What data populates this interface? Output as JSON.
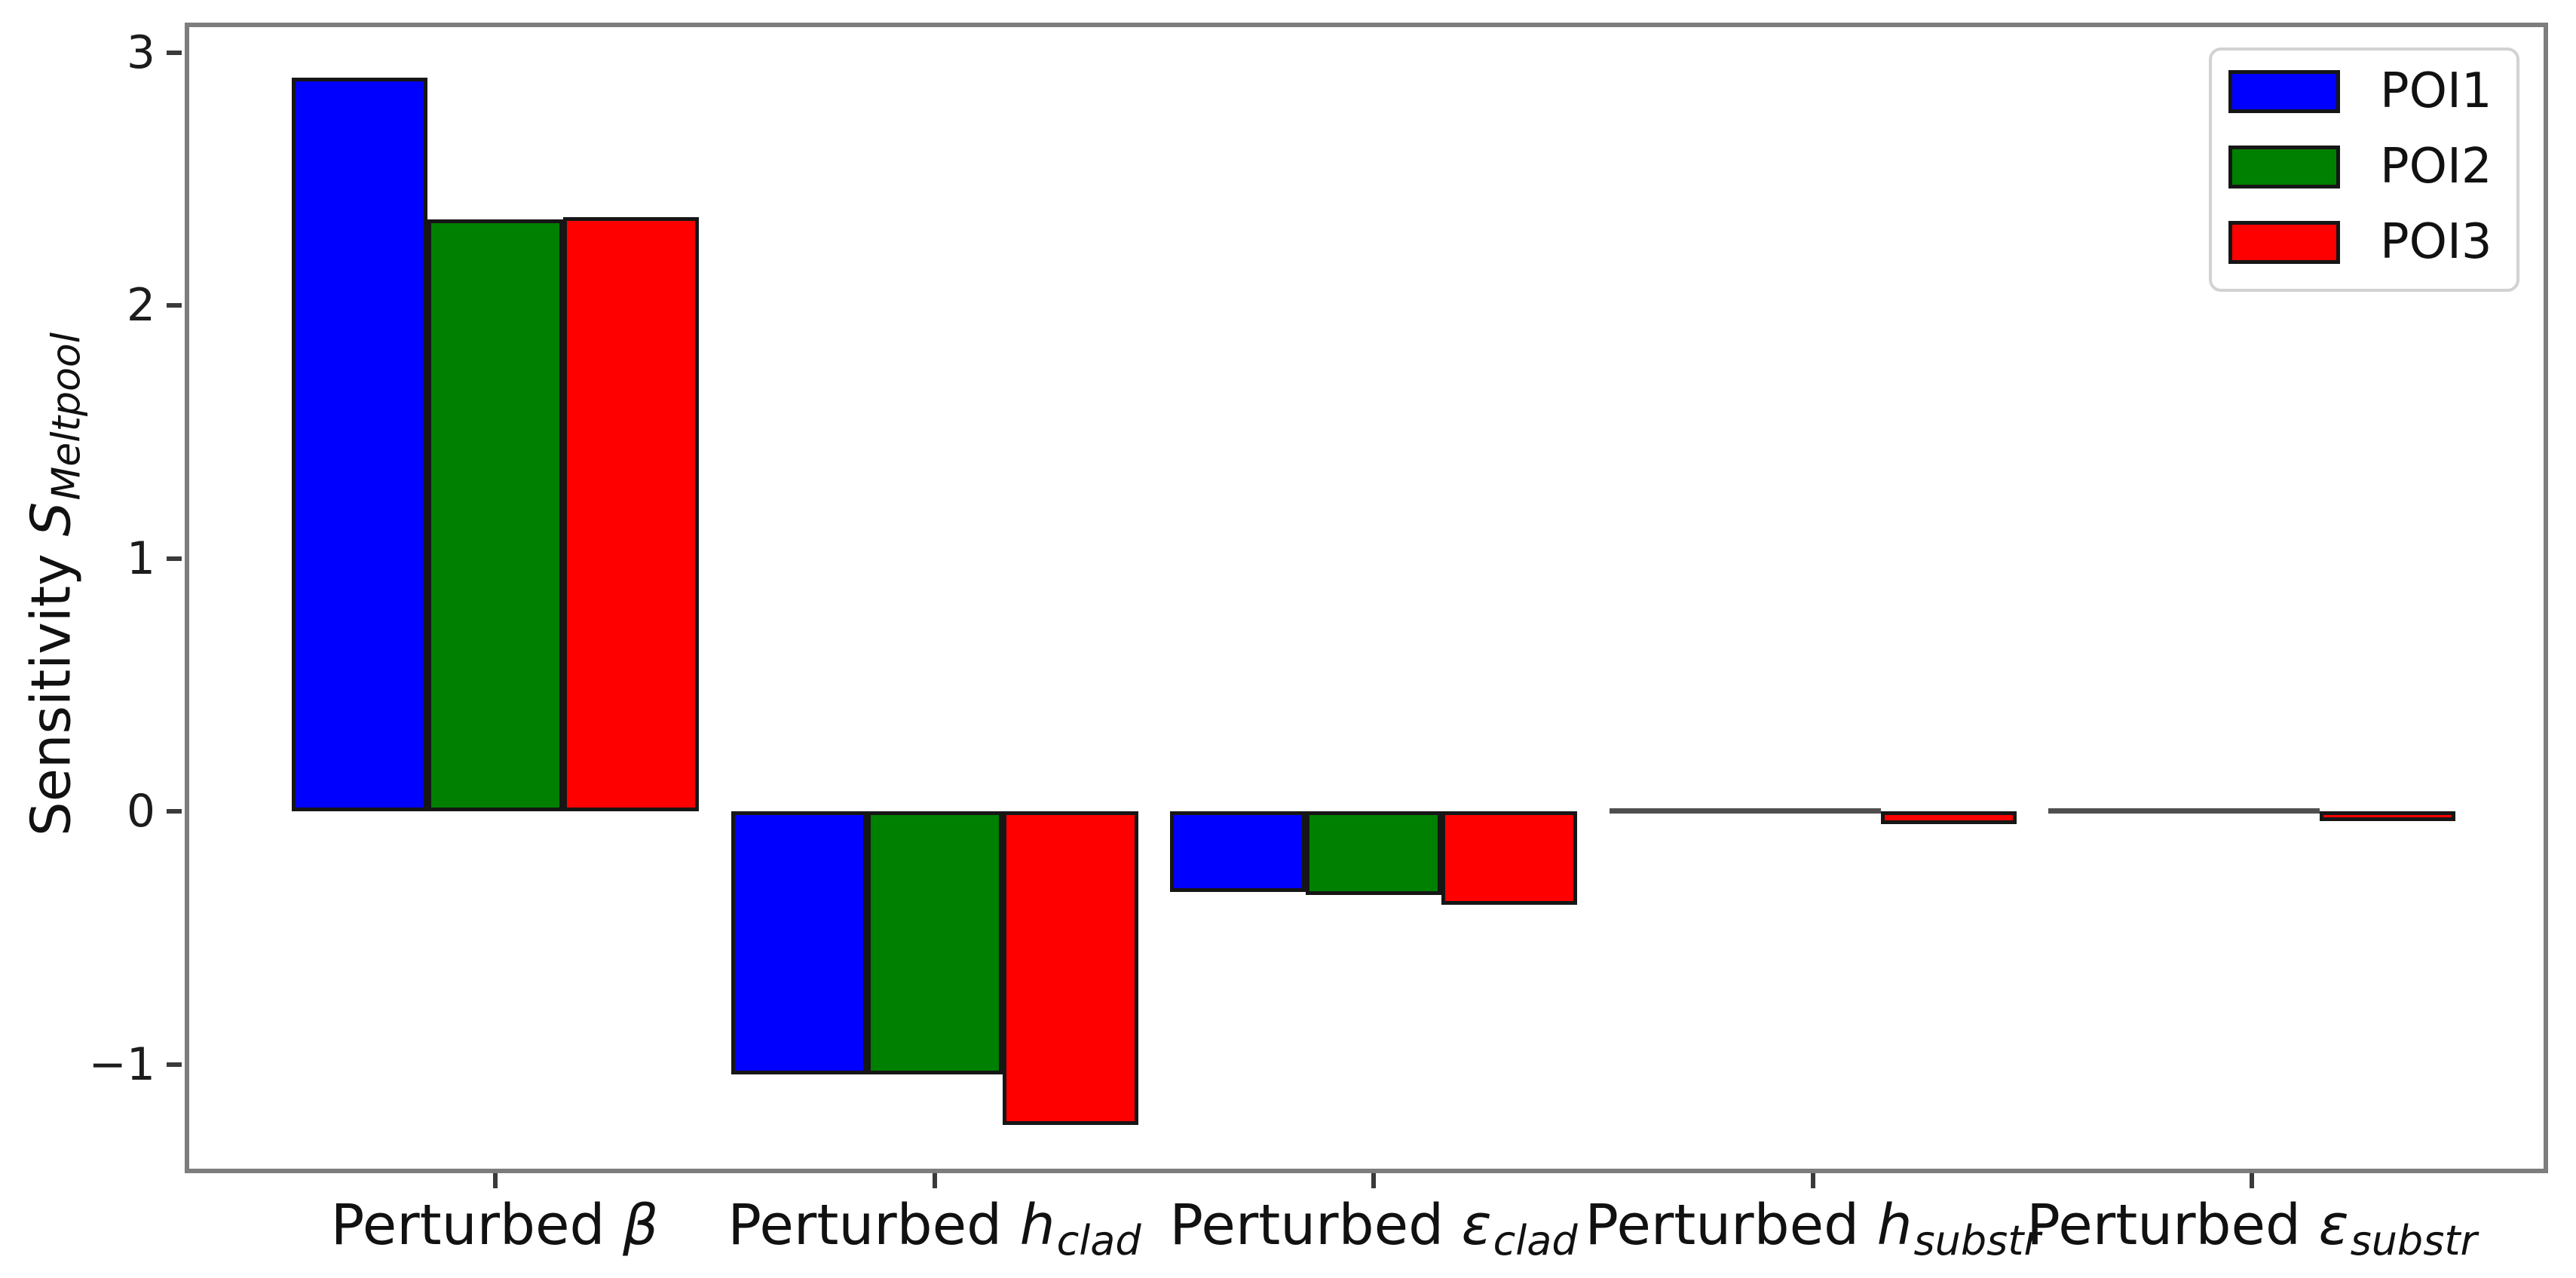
{
  "chart_data": {
    "type": "bar",
    "title": "",
    "ylabel": {
      "plain": "Sensitivity S_Meltpool",
      "text": "Sensitivity ",
      "symbol": "S",
      "subscript": "Meltpool"
    },
    "xlabel": "",
    "categories": [
      {
        "plain": "Perturbed β",
        "pre": "Perturbed ",
        "symbol": "β",
        "subscript": ""
      },
      {
        "plain": "Perturbed h_clad",
        "pre": "Perturbed ",
        "symbol": "h",
        "subscript": "clad"
      },
      {
        "plain": "Perturbed ε_clad",
        "pre": "Perturbed ",
        "symbol": "ε",
        "subscript": "clad"
      },
      {
        "plain": "Perturbed h_substr",
        "pre": "Perturbed ",
        "symbol": "h",
        "subscript": "substr"
      },
      {
        "plain": "Perturbed ε_substr",
        "pre": "Perturbed ",
        "symbol": "ε",
        "subscript": "substr"
      }
    ],
    "series": [
      {
        "name": "POI1",
        "color": "#0000ff",
        "values": [
          2.9,
          -1.04,
          -0.32,
          0.0,
          0.0
        ]
      },
      {
        "name": "POI2",
        "color": "#008000",
        "values": [
          2.34,
          -1.04,
          -0.33,
          0.0,
          0.0
        ]
      },
      {
        "name": "POI3",
        "color": "#ff0000",
        "values": [
          2.35,
          -1.24,
          -0.37,
          -0.05,
          -0.04
        ]
      }
    ],
    "yticks": [
      3,
      2,
      1,
      0,
      -1
    ],
    "ylim": [
      -1.43,
      3.12
    ],
    "grid": false,
    "legend": {
      "position": "upper right",
      "entries": [
        "POI1",
        "POI2",
        "POI3"
      ]
    },
    "bar_edge_color": "#161616"
  }
}
